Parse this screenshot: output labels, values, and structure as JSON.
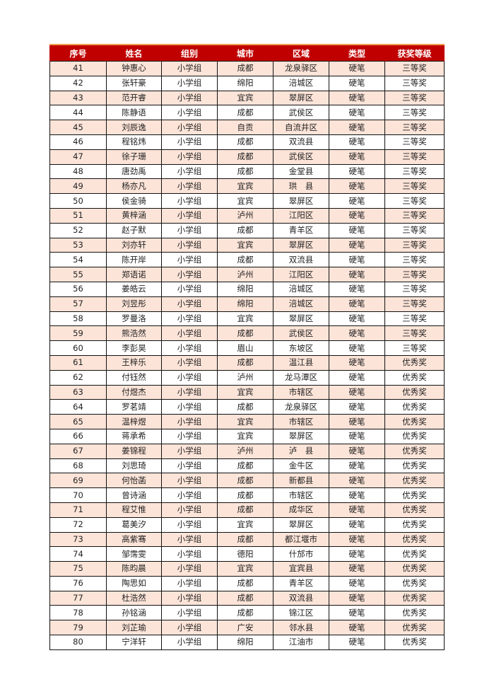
{
  "table": {
    "headers": [
      "序号",
      "姓名",
      "组别",
      "城市",
      "区域",
      "类型",
      "获奖等级"
    ],
    "rows": [
      [
        "41",
        "钟惠心",
        "小学组",
        "成都",
        "龙泉驿区",
        "硬笔",
        "三等奖"
      ],
      [
        "42",
        "张轩豪",
        "小学组",
        "绵阳",
        "涪城区",
        "硬笔",
        "三等奖"
      ],
      [
        "43",
        "范开睿",
        "小学组",
        "宜宾",
        "翠屏区",
        "硬笔",
        "三等奖"
      ],
      [
        "44",
        "陈静语",
        "小学组",
        "成都",
        "武侯区",
        "硬笔",
        "三等奖"
      ],
      [
        "45",
        "刘辰逸",
        "小学组",
        "自贡",
        "自流井区",
        "硬笔",
        "三等奖"
      ],
      [
        "46",
        "程铭炜",
        "小学组",
        "成都",
        "双流县",
        "硬笔",
        "三等奖"
      ],
      [
        "47",
        "徐子珊",
        "小学组",
        "成都",
        "武侯区",
        "硬笔",
        "三等奖"
      ],
      [
        "48",
        "唐劲禹",
        "小学组",
        "成都",
        "金堂县",
        "硬笔",
        "三等奖"
      ],
      [
        "49",
        "杨亦凡",
        "小学组",
        "宜宾",
        "珙　县",
        "硬笔",
        "三等奖"
      ],
      [
        "50",
        "侯金骑",
        "小学组",
        "宜宾",
        "翠屏区",
        "硬笔",
        "三等奖"
      ],
      [
        "51",
        "黄梓涵",
        "小学组",
        "泸州",
        "江阳区",
        "硬笔",
        "三等奖"
      ],
      [
        "52",
        "赵子默",
        "小学组",
        "成都",
        "青羊区",
        "硬笔",
        "三等奖"
      ],
      [
        "53",
        "刘亦轩",
        "小学组",
        "宜宾",
        "翠屏区",
        "硬笔",
        "三等奖"
      ],
      [
        "54",
        "陈开岸",
        "小学组",
        "成都",
        "双流县",
        "硬笔",
        "三等奖"
      ],
      [
        "55",
        "郑语诺",
        "小学组",
        "泸州",
        "江阳区",
        "硬笔",
        "三等奖"
      ],
      [
        "56",
        "姜皓云",
        "小学组",
        "绵阳",
        "涪城区",
        "硬笔",
        "三等奖"
      ],
      [
        "57",
        "刘昱彤",
        "小学组",
        "绵阳",
        "涪城区",
        "硬笔",
        "三等奖"
      ],
      [
        "58",
        "罗曼洛",
        "小学组",
        "宜宾",
        "翠屏区",
        "硬笔",
        "三等奖"
      ],
      [
        "59",
        "熊浩然",
        "小学组",
        "成都",
        "武侯区",
        "硬笔",
        "三等奖"
      ],
      [
        "60",
        "李彭昊",
        "小学组",
        "眉山",
        "东坡区",
        "硬笔",
        "三等奖"
      ],
      [
        "61",
        "王梓乐",
        "小学组",
        "成都",
        "温江县",
        "硬笔",
        "优秀奖"
      ],
      [
        "62",
        "付钰然",
        "小学组",
        "泸州",
        "龙马潭区",
        "硬笔",
        "优秀奖"
      ],
      [
        "63",
        "付煜杰",
        "小学组",
        "宜宾",
        "市辖区",
        "硬笔",
        "优秀奖"
      ],
      [
        "64",
        "罗茗靖",
        "小学组",
        "成都",
        "龙泉驿区",
        "硬笔",
        "优秀奖"
      ],
      [
        "65",
        "温梓煜",
        "小学组",
        "宜宾",
        "市辖区",
        "硬笔",
        "优秀奖"
      ],
      [
        "66",
        "蒋承希",
        "小学组",
        "宜宾",
        "翠屏区",
        "硬笔",
        "优秀奖"
      ],
      [
        "67",
        "姜锦程",
        "小学组",
        "泸州",
        "泸　县",
        "硬笔",
        "优秀奖"
      ],
      [
        "68",
        "刘思琦",
        "小学组",
        "成都",
        "金牛区",
        "硬笔",
        "优秀奖"
      ],
      [
        "69",
        "何怡菡",
        "小学组",
        "成都",
        "新都县",
        "硬笔",
        "优秀奖"
      ],
      [
        "70",
        "曾诗涵",
        "小学组",
        "成都",
        "市辖区",
        "硬笔",
        "优秀奖"
      ],
      [
        "71",
        "程艾惟",
        "小学组",
        "成都",
        "成华区",
        "硬笔",
        "优秀奖"
      ],
      [
        "72",
        "葛美汐",
        "小学组",
        "宜宾",
        "翠屏区",
        "硬笔",
        "优秀奖"
      ],
      [
        "73",
        "高紫骞",
        "小学组",
        "成都",
        "都江堰市",
        "硬笔",
        "优秀奖"
      ],
      [
        "74",
        "邹霈雯",
        "小学组",
        "德阳",
        "什邡市",
        "硬笔",
        "优秀奖"
      ],
      [
        "75",
        "陈昀晨",
        "小学组",
        "宜宾",
        "宜宾县",
        "硬笔",
        "优秀奖"
      ],
      [
        "76",
        "陶思如",
        "小学组",
        "成都",
        "青羊区",
        "硬笔",
        "优秀奖"
      ],
      [
        "77",
        "杜浩然",
        "小学组",
        "成都",
        "双流县",
        "硬笔",
        "优秀奖"
      ],
      [
        "78",
        "孙铭涵",
        "小学组",
        "成都",
        "锦江区",
        "硬笔",
        "优秀奖"
      ],
      [
        "79",
        "刘芷瑜",
        "小学组",
        "广安",
        "邻水县",
        "硬笔",
        "优秀奖"
      ],
      [
        "80",
        "宁洋轩",
        "小学组",
        "绵阳",
        "江油市",
        "硬笔",
        "优秀奖"
      ]
    ]
  },
  "colors": {
    "header_bg": "#c00000",
    "header_top_line": "#f0a050",
    "stripe": "#fde4d8"
  }
}
